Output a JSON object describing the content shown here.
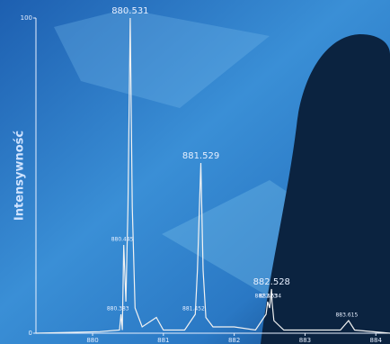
{
  "chart_data": {
    "type": "line",
    "y_label": "Intensywność",
    "color": "#f2f2f2",
    "xlim": [
      879.2,
      884.2
    ],
    "ylim": [
      0,
      100
    ],
    "xticks": [
      880,
      881,
      882,
      883,
      884
    ],
    "yticks": [
      0,
      100
    ],
    "x": [
      879.2,
      880.1,
      880.38,
      880.4,
      880.42,
      880.44,
      880.47,
      880.5,
      880.531,
      880.56,
      880.6,
      880.7,
      880.9,
      881.0,
      881.3,
      881.45,
      881.48,
      881.529,
      881.56,
      881.6,
      881.7,
      882.0,
      882.3,
      882.45,
      882.473,
      882.5,
      882.528,
      882.534,
      882.56,
      882.7,
      883.5,
      883.615,
      883.7,
      884.2
    ],
    "values": [
      0,
      0.5,
      1,
      6,
      1,
      28,
      10,
      40,
      100,
      40,
      8,
      2,
      5,
      1,
      1,
      6,
      20,
      54,
      20,
      5,
      2,
      2,
      1,
      6,
      10,
      8,
      14,
      10,
      4,
      1,
      1,
      4,
      1,
      0
    ],
    "annotations": [
      {
        "label": "880.531",
        "x": 880.531,
        "y": 100
      },
      {
        "label": "881.529",
        "x": 881.529,
        "y": 54
      },
      {
        "label": "882.528",
        "x": 882.528,
        "y": 14
      },
      {
        "label": "880.445",
        "x": 880.445,
        "y": 28
      },
      {
        "label": "880.383",
        "x": 880.383,
        "y": 6
      },
      {
        "label": "881.452",
        "x": 881.452,
        "y": 6
      },
      {
        "label": "882.473",
        "x": 882.473,
        "y": 10
      },
      {
        "label": "882.534",
        "x": 882.534,
        "y": 10
      },
      {
        "label": "883.615",
        "x": 883.615,
        "y": 4
      }
    ]
  }
}
